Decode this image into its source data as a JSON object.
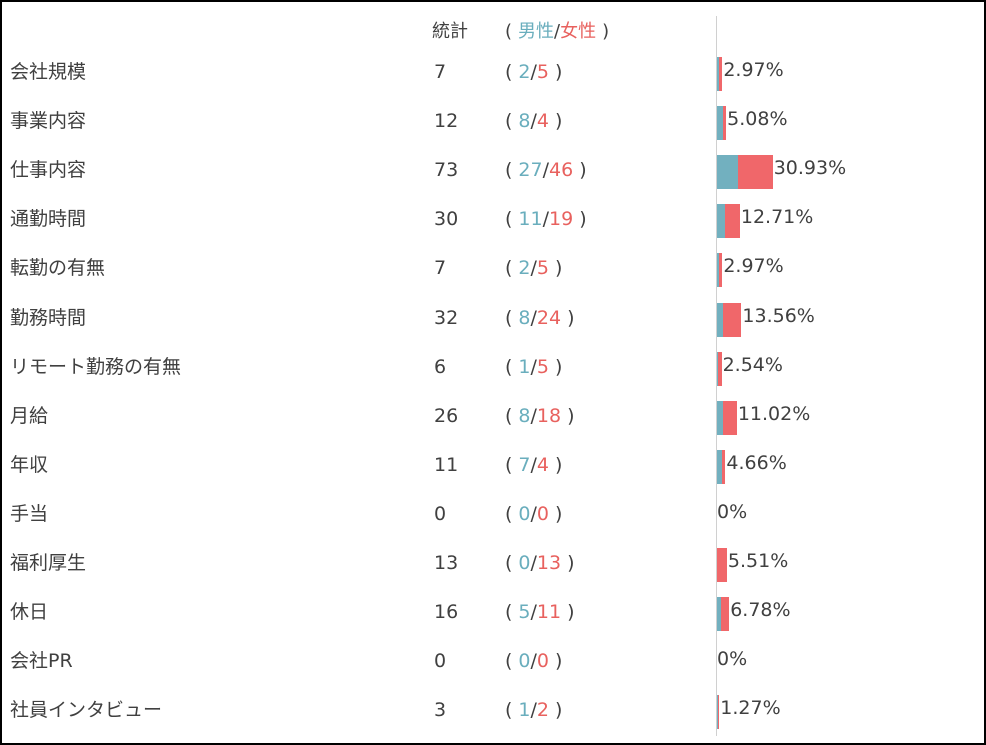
{
  "header": {
    "stat_label": "統計",
    "paren_open": "(",
    "paren_close": ")",
    "male_label": "男性",
    "slash": "/",
    "female_label": "女性"
  },
  "colors": {
    "male": "#72b0bf",
    "female": "#f0676a"
  },
  "chart_data": {
    "type": "bar",
    "orientation": "horizontal",
    "stacked": true,
    "categories": [
      "会社規模",
      "事業内容",
      "仕事内容",
      "通勤時間",
      "転勤の有無",
      "勤務時間",
      "リモート勤務の有無",
      "月給",
      "年収",
      "手当",
      "福利厚生",
      "休日",
      "会社PR",
      "社員インタビュー"
    ],
    "totals": [
      7,
      12,
      73,
      30,
      7,
      32,
      6,
      26,
      11,
      0,
      13,
      16,
      0,
      3
    ],
    "percent_labels": [
      "2.97%",
      "5.08%",
      "30.93%",
      "12.71%",
      "2.97%",
      "13.56%",
      "2.54%",
      "11.02%",
      "4.66%",
      "0%",
      "5.51%",
      "6.78%",
      "0%",
      "1.27%"
    ],
    "series": [
      {
        "name": "男性",
        "values": [
          2,
          8,
          27,
          11,
          2,
          8,
          1,
          8,
          7,
          0,
          0,
          5,
          0,
          1
        ]
      },
      {
        "name": "女性",
        "values": [
          5,
          4,
          46,
          19,
          5,
          24,
          5,
          18,
          4,
          0,
          13,
          11,
          0,
          2
        ]
      }
    ],
    "grid": false,
    "legend": "none"
  }
}
